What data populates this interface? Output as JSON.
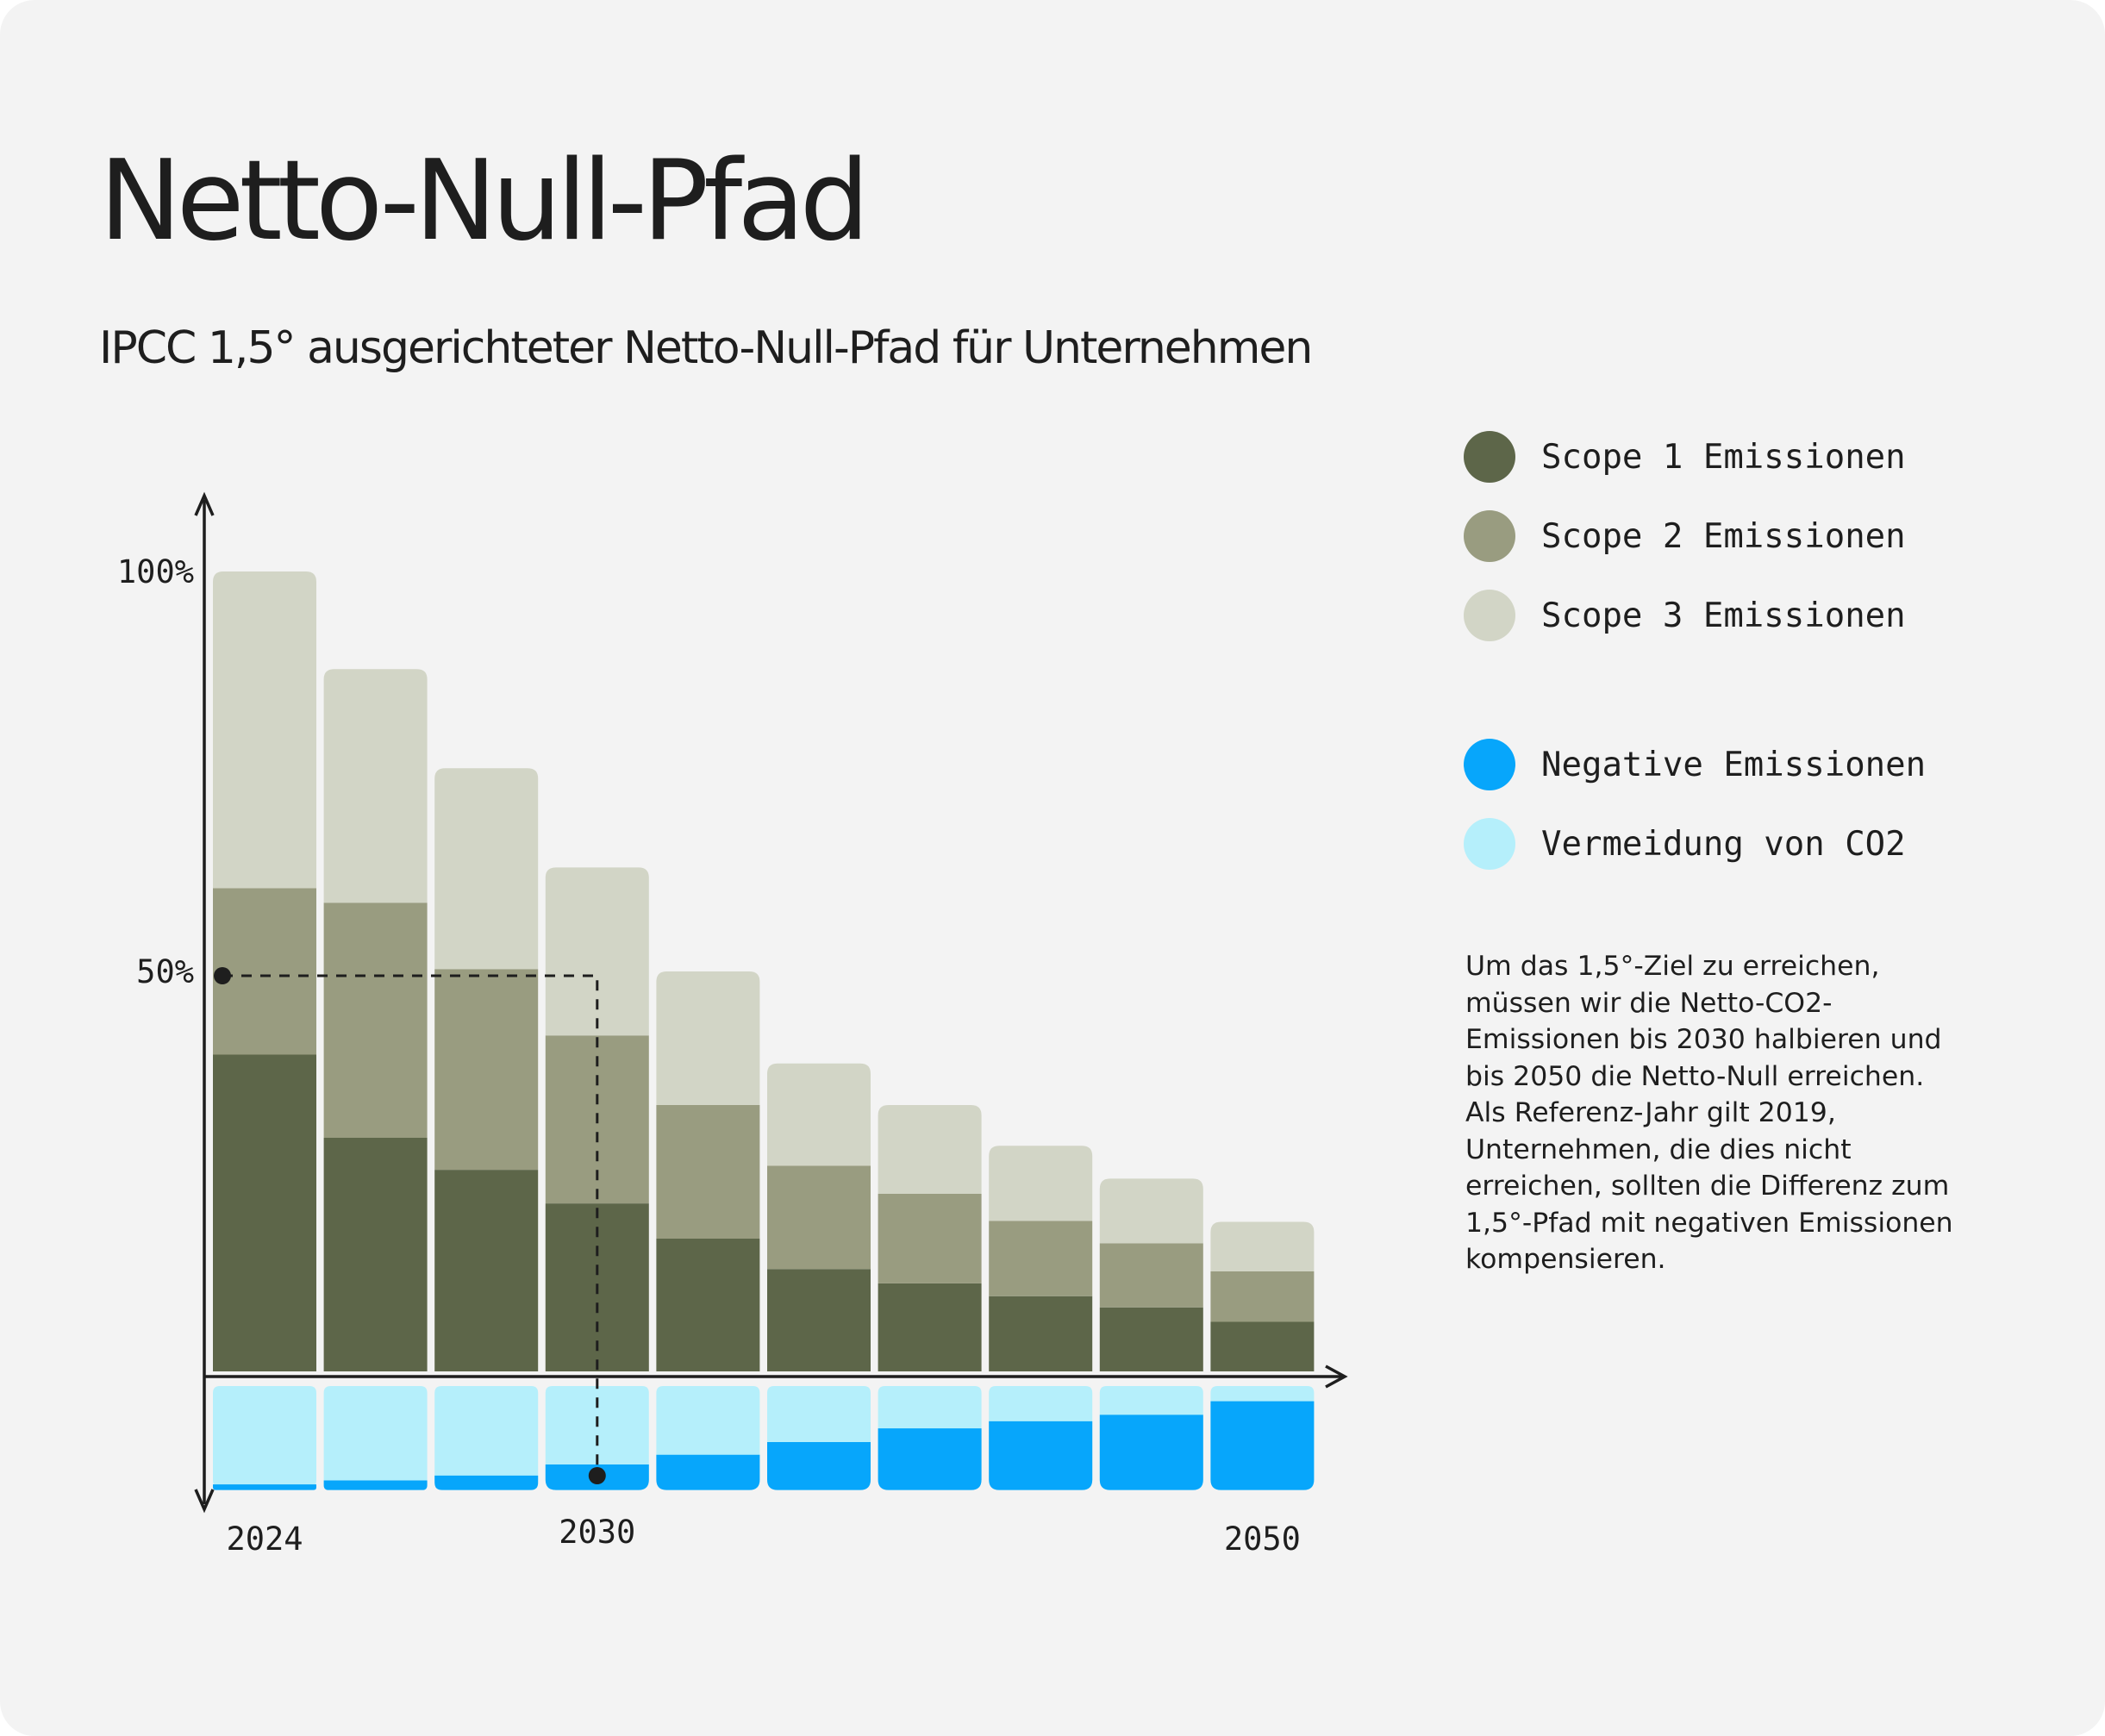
{
  "title": "Netto-Null-Pfad",
  "subtitle": "IPCC 1,5° ausgerichteter Netto-Null-Pfad für Unternehmen",
  "legend": {
    "emissions": [
      {
        "label": "Scope 1 Emissionen",
        "color": "#5d6649"
      },
      {
        "label": "Scope 2 Emissionen",
        "color": "#999c80"
      },
      {
        "label": "Scope 3 Emissionen",
        "color": "#d2d5c6"
      }
    ],
    "compensation": [
      {
        "label": "Negative Emissionen",
        "color": "#07a6fb"
      },
      {
        "label": "Vermeidung von CO2",
        "color": "#b5effb"
      }
    ]
  },
  "note": "Um das 1,5°-Ziel zu erreichen,\nmüssen wir die Netto-CO2-\nEmissionen bis 2030 halbieren und\nbis 2050 die Netto-Null erreichen.\nAls Referenz-Jahr gilt 2019,\nUnternehmen, die dies nicht\nerreichen, sollten die Differenz zum\n1,5°-Pfad mit negativen Emissionen\nkompensieren.",
  "chart_data": {
    "type": "bar",
    "stacked": true,
    "ylim": [
      0,
      100
    ],
    "y_ticks": [
      {
        "value": 100,
        "label": "100%"
      },
      {
        "value": 50,
        "label": "50%"
      }
    ],
    "x_labels": [
      {
        "bar_index": 0,
        "label": "2024"
      },
      {
        "bar_index": 3,
        "label": "2030"
      },
      {
        "bar_index": 9,
        "label": "2050"
      }
    ],
    "series": [
      {
        "name": "Scope 1 Emissionen",
        "color": "#5d6649",
        "values": [
          39.6,
          29.2,
          25.2,
          21.0,
          16.6,
          12.8,
          11.0,
          9.4,
          8.0,
          6.2
        ]
      },
      {
        "name": "Scope 2 Emissionen",
        "color": "#999c80",
        "values": [
          20.8,
          29.4,
          25.1,
          21.0,
          16.7,
          12.9,
          11.2,
          9.4,
          8.0,
          6.3
        ]
      },
      {
        "name": "Scope 3 Emissionen",
        "color": "#d2d5c6",
        "values": [
          39.6,
          29.2,
          25.1,
          21.0,
          16.7,
          12.8,
          11.1,
          9.4,
          8.1,
          6.2
        ]
      }
    ],
    "negative_series": [
      {
        "name": "Negative Emissionen",
        "color": "#07a6fb",
        "values": [
          0.7,
          1.2,
          1.8,
          3.2,
          4.4,
          6.0,
          7.7,
          8.6,
          9.4,
          11.1
        ]
      },
      {
        "name": "Vermeidung von CO2",
        "color": "#b5effb",
        "values": [
          12.3,
          11.8,
          11.2,
          9.8,
          8.6,
          7.0,
          5.3,
          4.4,
          3.6,
          1.9
        ]
      }
    ],
    "marker": {
      "from_y": 50,
      "bar_index": 3
    }
  }
}
